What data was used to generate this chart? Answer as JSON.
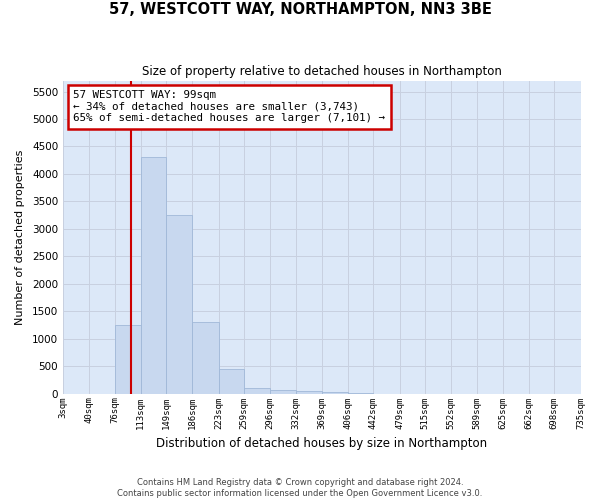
{
  "title": "57, WESTCOTT WAY, NORTHAMPTON, NN3 3BE",
  "subtitle": "Size of property relative to detached houses in Northampton",
  "xlabel": "Distribution of detached houses by size in Northampton",
  "ylabel": "Number of detached properties",
  "footer_line1": "Contains HM Land Registry data © Crown copyright and database right 2024.",
  "footer_line2": "Contains public sector information licensed under the Open Government Licence v3.0.",
  "annotation_title": "57 WESTCOTT WAY: 99sqm",
  "annotation_line1": "← 34% of detached houses are smaller (3,743)",
  "annotation_line2": "65% of semi-detached houses are larger (7,101) →",
  "property_size": 99,
  "bar_color": "#c8d8ef",
  "bar_edge_color": "#a0b8d8",
  "red_line_color": "#cc0000",
  "annotation_box_edge_color": "#cc0000",
  "grid_color": "#c8d0e0",
  "background_color": "#dce8f8",
  "bin_edges": [
    3,
    40,
    76,
    113,
    149,
    186,
    223,
    259,
    296,
    332,
    369,
    406,
    442,
    479,
    515,
    552,
    589,
    625,
    662,
    698,
    735
  ],
  "bin_labels": [
    "3sqm",
    "40sqm",
    "76sqm",
    "113sqm",
    "149sqm",
    "186sqm",
    "223sqm",
    "259sqm",
    "296sqm",
    "332sqm",
    "369sqm",
    "406sqm",
    "442sqm",
    "479sqm",
    "515sqm",
    "552sqm",
    "589sqm",
    "625sqm",
    "662sqm",
    "698sqm",
    "735sqm"
  ],
  "bar_heights": [
    0,
    0,
    1250,
    4300,
    3250,
    1300,
    450,
    100,
    70,
    50,
    30,
    10,
    0,
    0,
    0,
    0,
    0,
    0,
    0,
    0
  ],
  "ylim": [
    0,
    5700
  ],
  "yticks": [
    0,
    500,
    1000,
    1500,
    2000,
    2500,
    3000,
    3500,
    4000,
    4500,
    5000,
    5500
  ]
}
